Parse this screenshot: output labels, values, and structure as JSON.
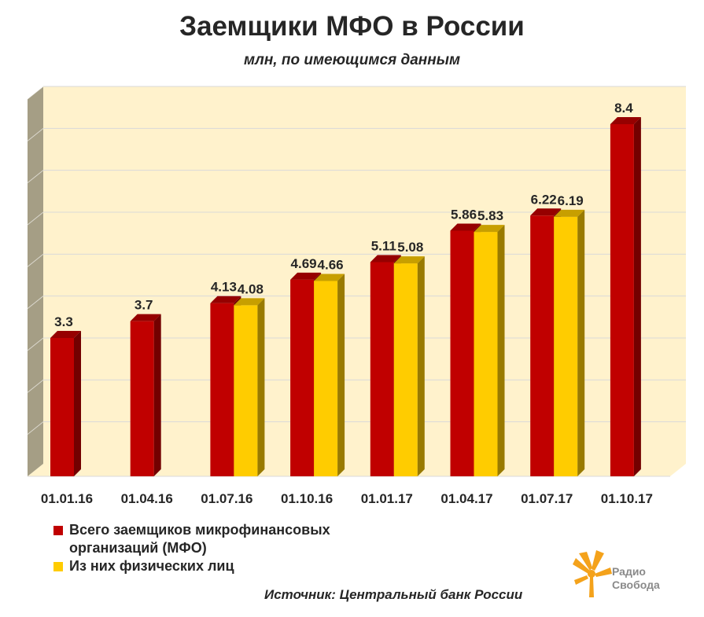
{
  "chart_data": {
    "type": "bar",
    "title": "Заемщики МФО в России",
    "subtitle": "млн, по имеющимся данным",
    "categories": [
      "01.01.16",
      "01.04.16",
      "01.07.16",
      "01.10.16",
      "01.01.17",
      "01.04.17",
      "01.07.17",
      "01.10.17"
    ],
    "series": [
      {
        "name": "Всего заемщиков микрофинансовых организаций (МФО)",
        "color": "#c00000",
        "values": [
          3.3,
          3.7,
          4.13,
          4.69,
          5.11,
          5.86,
          6.22,
          8.4
        ],
        "labels": [
          "3.3",
          "3.7",
          "4.13",
          "4.69",
          "5.11",
          "5.86",
          "6.22",
          "8.4"
        ]
      },
      {
        "name": "Из них физических лиц",
        "color": "#ffcc00",
        "values": [
          null,
          null,
          4.08,
          4.66,
          5.08,
          5.83,
          6.19,
          null
        ],
        "labels": [
          null,
          null,
          "4.08",
          "4.66",
          "5.08",
          "5.83",
          "6.19",
          null
        ]
      }
    ],
    "ylim": [
      0,
      9
    ],
    "grid": true,
    "legend_position": "bottom-left",
    "plot_background": "#fff2cc",
    "wall_color": "#a59e85"
  },
  "legend": {
    "item1_line1": "Всего заемщиков микрофинансовых",
    "item1_line2": "организаций (МФО)",
    "item2": "Из них физических лиц"
  },
  "source": "Источник: Центральный банк России",
  "logo": {
    "line1": "Радио",
    "line2": "Свобода",
    "text_color": "#8a8a8a",
    "mark_color": "#f4a21b"
  }
}
